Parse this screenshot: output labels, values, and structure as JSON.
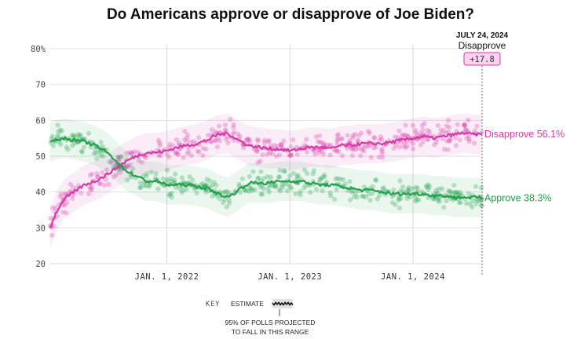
{
  "chart_data": {
    "type": "line",
    "title": "Do Americans approve or disapprove of Joe Biden?",
    "ylim": [
      20,
      80
    ],
    "y_ticks": [
      {
        "value": 80,
        "label": "80%"
      },
      {
        "value": 70,
        "label": "70"
      },
      {
        "value": 60,
        "label": "60"
      },
      {
        "value": 50,
        "label": "50"
      },
      {
        "value": 40,
        "label": "40"
      },
      {
        "value": 30,
        "label": "30"
      },
      {
        "value": 20,
        "label": "20"
      }
    ],
    "x_range": [
      "2021-01-20",
      "2024-07-24"
    ],
    "x_ticks": [
      {
        "date": "2022-01-01",
        "label": "JAN. 1, 2022"
      },
      {
        "date": "2023-01-01",
        "label": "JAN. 1, 2023"
      },
      {
        "date": "2024-01-01",
        "label": "JAN. 1, 2024"
      }
    ],
    "grid": true,
    "series": [
      {
        "name": "Disapprove",
        "color": "#d63aa8",
        "end_label": "Disapprove 56.1%",
        "points": [
          [
            "2021-01-20",
            30
          ],
          [
            "2021-02-05",
            34
          ],
          [
            "2021-03-01",
            38
          ],
          [
            "2021-04-01",
            40
          ],
          [
            "2021-05-01",
            42
          ],
          [
            "2021-06-01",
            43
          ],
          [
            "2021-07-01",
            44.5
          ],
          [
            "2021-08-01",
            46.5
          ],
          [
            "2021-09-01",
            48.5
          ],
          [
            "2021-10-01",
            50
          ],
          [
            "2021-11-01",
            51
          ],
          [
            "2021-12-01",
            51
          ],
          [
            "2022-01-01",
            51.5
          ],
          [
            "2022-02-01",
            52.5
          ],
          [
            "2022-03-01",
            53
          ],
          [
            "2022-04-01",
            53.5
          ],
          [
            "2022-05-01",
            54.5
          ],
          [
            "2022-06-01",
            56
          ],
          [
            "2022-07-01",
            56.3
          ],
          [
            "2022-08-01",
            54.5
          ],
          [
            "2022-09-01",
            53
          ],
          [
            "2022-10-01",
            52.5
          ],
          [
            "2022-11-01",
            52
          ],
          [
            "2022-12-01",
            52
          ],
          [
            "2023-01-01",
            51.5
          ],
          [
            "2023-02-01",
            52
          ],
          [
            "2023-03-01",
            52.5
          ],
          [
            "2023-04-01",
            52.5
          ],
          [
            "2023-05-01",
            52
          ],
          [
            "2023-06-01",
            53
          ],
          [
            "2023-07-01",
            53
          ],
          [
            "2023-08-01",
            53.5
          ],
          [
            "2023-09-01",
            53.5
          ],
          [
            "2023-10-01",
            53.5
          ],
          [
            "2023-11-01",
            54
          ],
          [
            "2023-12-01",
            54.5
          ],
          [
            "2024-01-01",
            55
          ],
          [
            "2024-02-01",
            55.5
          ],
          [
            "2024-03-01",
            55
          ],
          [
            "2024-04-01",
            55.5
          ],
          [
            "2024-05-01",
            56
          ],
          [
            "2024-06-01",
            56.5
          ],
          [
            "2024-07-01",
            56
          ],
          [
            "2024-07-24",
            56.1
          ]
        ]
      },
      {
        "name": "Approve",
        "color": "#22a04b",
        "end_label": "Approve 38.3%",
        "points": [
          [
            "2021-01-20",
            54
          ],
          [
            "2021-02-05",
            54.5
          ],
          [
            "2021-03-01",
            55
          ],
          [
            "2021-04-01",
            54.5
          ],
          [
            "2021-05-01",
            54
          ],
          [
            "2021-06-01",
            53
          ],
          [
            "2021-07-01",
            51.5
          ],
          [
            "2021-08-01",
            49
          ],
          [
            "2021-09-01",
            46
          ],
          [
            "2021-10-01",
            44.5
          ],
          [
            "2021-11-01",
            43
          ],
          [
            "2021-12-01",
            43
          ],
          [
            "2022-01-01",
            42
          ],
          [
            "2022-02-01",
            42
          ],
          [
            "2022-03-01",
            42
          ],
          [
            "2022-04-01",
            41.5
          ],
          [
            "2022-05-01",
            41
          ],
          [
            "2022-06-01",
            39.5
          ],
          [
            "2022-07-01",
            38.5
          ],
          [
            "2022-08-01",
            40.5
          ],
          [
            "2022-09-01",
            42.5
          ],
          [
            "2022-10-01",
            42.5
          ],
          [
            "2022-11-01",
            42.5
          ],
          [
            "2022-12-01",
            43
          ],
          [
            "2023-01-01",
            43
          ],
          [
            "2023-02-01",
            43
          ],
          [
            "2023-03-01",
            42.5
          ],
          [
            "2023-04-01",
            42
          ],
          [
            "2023-05-01",
            42
          ],
          [
            "2023-06-01",
            41.5
          ],
          [
            "2023-07-01",
            41
          ],
          [
            "2023-08-01",
            40.5
          ],
          [
            "2023-09-01",
            40.5
          ],
          [
            "2023-10-01",
            40
          ],
          [
            "2023-11-01",
            39.5
          ],
          [
            "2023-12-01",
            39.5
          ],
          [
            "2024-01-01",
            39.5
          ],
          [
            "2024-02-01",
            39.5
          ],
          [
            "2024-03-01",
            39
          ],
          [
            "2024-04-01",
            39
          ],
          [
            "2024-05-01",
            38.5
          ],
          [
            "2024-06-01",
            38.5
          ],
          [
            "2024-07-01",
            38.5
          ],
          [
            "2024-07-24",
            38.3
          ]
        ]
      }
    ],
    "annotation": {
      "date": "JULY 24, 2024",
      "label": "Disapprove",
      "value": "+17.8"
    },
    "key": {
      "heading": "KEY",
      "estimate_label": "ESTIMATE",
      "range_label_line1": "95% OF POLLS PROJECTED",
      "range_label_line2": "TO FALL IN THIS RANGE"
    }
  }
}
